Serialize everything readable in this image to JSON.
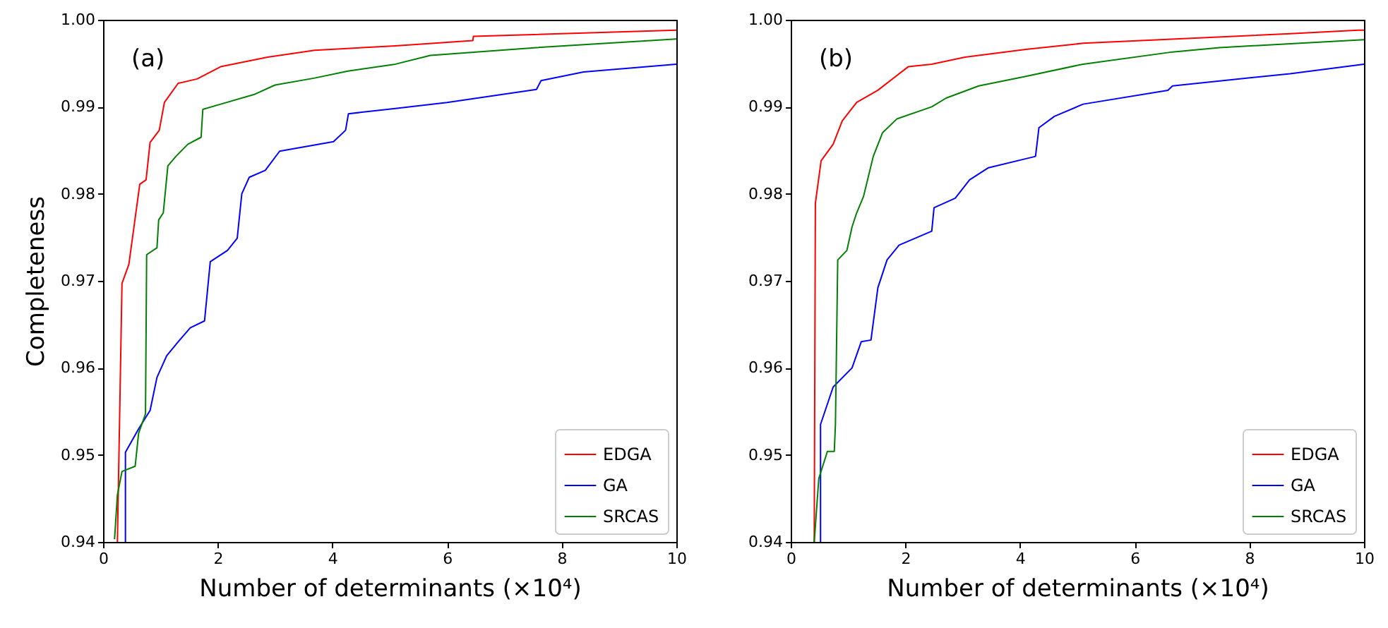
{
  "chart_data": [
    {
      "type": "line",
      "xlabel": "Number of determinants (×10⁴)",
      "ylabel": "Completeness",
      "annotations": [
        "(a)"
      ],
      "legend": "bottom right",
      "grid": false,
      "xlim": [
        0,
        10
      ],
      "xticks": [
        0,
        2,
        4,
        6,
        8,
        10
      ],
      "ylim": [
        0.94,
        1.0
      ],
      "yticks": [
        0.94,
        0.95,
        0.96,
        0.97,
        0.98,
        0.99,
        {
          "value": 1.0,
          "label": "1.00"
        }
      ],
      "series": [
        {
          "name": "EDGA",
          "color": "#ff0000",
          "x": [
            0.25,
            0.33,
            0.45,
            0.64,
            0.75,
            0.82,
            0.98,
            1.07,
            1.31,
            1.64,
            2.05,
            2.87,
            3.69,
            5.1,
            6.45,
            6.46,
            10
          ],
          "values": [
            0.94,
            0.9697,
            0.9719,
            0.9811,
            0.9816,
            0.9859,
            0.9873,
            0.9905,
            0.9927,
            0.9932,
            0.9946,
            0.9957,
            0.9965,
            0.997,
            0.9976,
            0.9981,
            0.9988
          ]
        },
        {
          "name": "GA",
          "color": "#0000ff",
          "x": [
            0.39,
            0.39,
            0.62,
            0.82,
            0.94,
            1.11,
            1.31,
            1.52,
            1.77,
            1.87,
            2.17,
            2.34,
            2.42,
            2.55,
            2.83,
            3.08,
            4.02,
            4.23,
            4.28,
            5.1,
            6.0,
            7.56,
            7.64,
            8.38,
            10
          ],
          "values": [
            0.94,
            0.9503,
            0.953,
            0.9551,
            0.9589,
            0.9614,
            0.963,
            0.9646,
            0.9654,
            0.9722,
            0.9735,
            0.9749,
            0.98,
            0.9819,
            0.9827,
            0.9849,
            0.986,
            0.9873,
            0.9892,
            0.9898,
            0.9905,
            0.992,
            0.993,
            0.994,
            0.9949
          ]
        },
        {
          "name": "SRCAS",
          "color": "#008000",
          "x": [
            0.2,
            0.25,
            0.33,
            0.56,
            0.62,
            0.74,
            0.76,
            0.94,
            0.97,
            1.05,
            1.13,
            1.27,
            1.48,
            1.71,
            1.74,
            2.05,
            2.63,
            3.0,
            3.69,
            4.27,
            5.1,
            5.71,
            7.56,
            10
          ],
          "values": [
            0.9403,
            0.9454,
            0.9481,
            0.9487,
            0.9525,
            0.9547,
            0.973,
            0.9738,
            0.977,
            0.9778,
            0.9832,
            0.9843,
            0.9857,
            0.9865,
            0.9897,
            0.9903,
            0.9914,
            0.9925,
            0.9933,
            0.9941,
            0.9949,
            0.9959,
            0.9968,
            0.9978
          ]
        }
      ]
    },
    {
      "type": "line",
      "xlabel": "Number of determinants (×10⁴)",
      "annotations": [
        "(b)"
      ],
      "legend": "bottom right",
      "grid": false,
      "xlim": [
        0,
        10
      ],
      "xticks": [
        0,
        2,
        4,
        6,
        8,
        10
      ],
      "ylim": [
        0.94,
        1.0
      ],
      "yticks": [
        0.94,
        0.95,
        0.96,
        0.97,
        0.98,
        0.99,
        {
          "value": 1.0,
          "label": "1.00"
        }
      ],
      "series": [
        {
          "name": "EDGA",
          "color": "#ff0000",
          "x": [
            0.41,
            0.43,
            0.53,
            0.74,
            0.9,
            1.15,
            1.52,
            2.05,
            2.46,
            3.04,
            4.1,
            5.1,
            8.71,
            9.9,
            10
          ],
          "values": [
            0.94,
            0.9789,
            0.9838,
            0.9857,
            0.9884,
            0.9905,
            0.9919,
            0.9946,
            0.9949,
            0.9957,
            0.9966,
            0.9973,
            0.9984,
            0.9988,
            0.9988
          ]
        },
        {
          "name": "GA",
          "color": "#0000ff",
          "x": [
            0.52,
            0.52,
            0.74,
            1.07,
            1.23,
            1.4,
            1.52,
            1.68,
            1.89,
            2.46,
            2.5,
            2.87,
            3.12,
            3.45,
            4.27,
            4.33,
            4.6,
            5.1,
            6.58,
            6.66,
            8.71,
            10
          ],
          "values": [
            0.94,
            0.9535,
            0.9578,
            0.96,
            0.963,
            0.9632,
            0.9692,
            0.9724,
            0.9741,
            0.9757,
            0.9784,
            0.9795,
            0.9816,
            0.983,
            0.9843,
            0.9876,
            0.9889,
            0.9903,
            0.9919,
            0.9924,
            0.9938,
            0.9949
          ]
        },
        {
          "name": "SRCAS",
          "color": "#008000",
          "x": [
            0.41,
            0.49,
            0.64,
            0.76,
            0.78,
            0.82,
            0.98,
            1.07,
            1.15,
            1.27,
            1.44,
            1.6,
            1.85,
            2.46,
            2.71,
            3.28,
            4.1,
            5.1,
            6.66,
            7.48,
            10
          ],
          "values": [
            0.94,
            0.9473,
            0.9504,
            0.9504,
            0.9535,
            0.9724,
            0.9735,
            0.9762,
            0.9778,
            0.9797,
            0.9843,
            0.987,
            0.9886,
            0.99,
            0.991,
            0.9924,
            0.9935,
            0.9949,
            0.9963,
            0.9968,
            0.9977
          ]
        }
      ]
    }
  ]
}
